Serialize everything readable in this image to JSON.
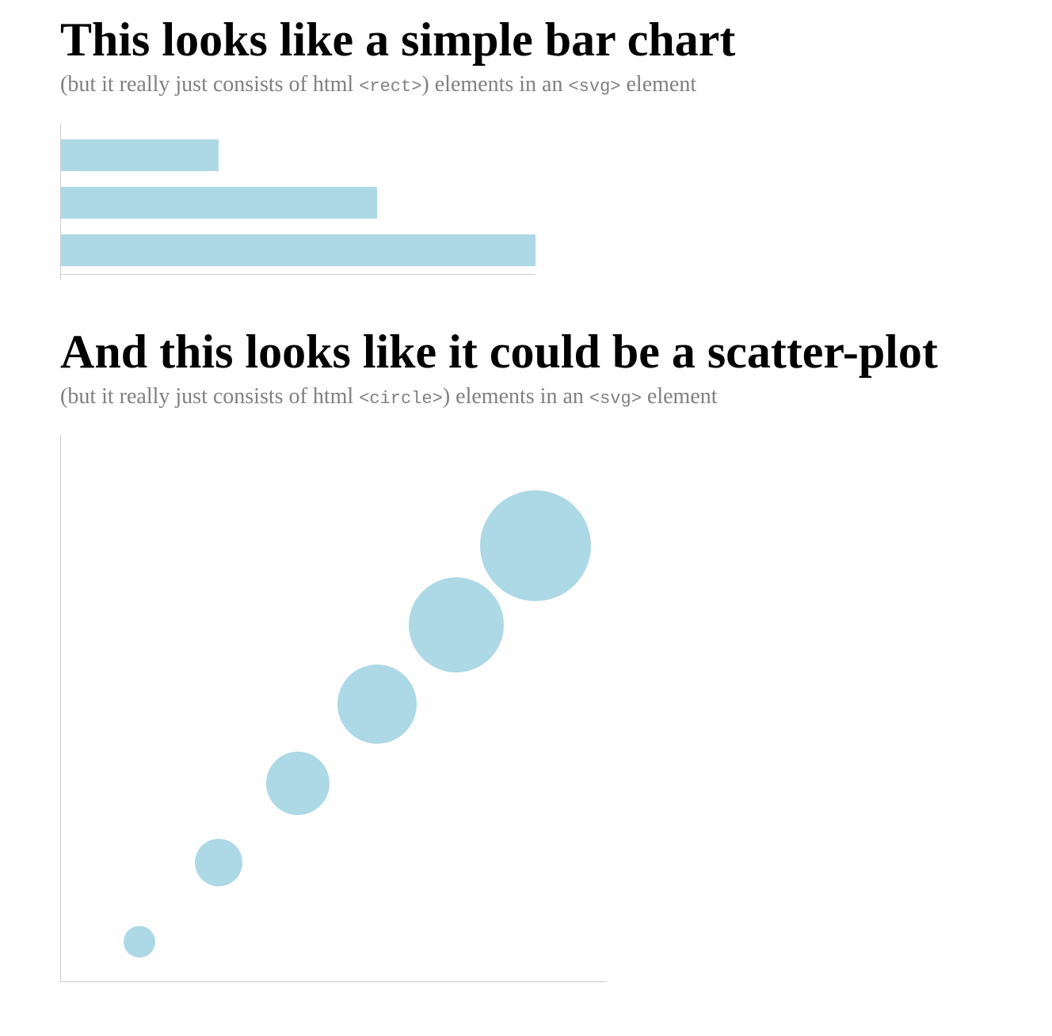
{
  "colors": {
    "mark": "#add8e6",
    "axis": "#cccccc",
    "title": "#000000",
    "subtitle": "#808080"
  },
  "section1": {
    "title": "This looks like a simple bar chart",
    "subtitle_pre": "(but it really just consists of html ",
    "subtitle_code1": "<rect>",
    "subtitle_mid": ") elements in an ",
    "subtitle_code2": "<svg>",
    "subtitle_post": " element"
  },
  "section2": {
    "title": "And this looks like it could be a scatter-plot",
    "subtitle_pre": "(but it really just consists of html ",
    "subtitle_code1": "<circle>",
    "subtitle_mid": ") elements in an ",
    "subtitle_code2": "<svg>",
    "subtitle_post": " element"
  },
  "chart_data": [
    {
      "type": "bar",
      "orientation": "horizontal",
      "values": [
        1,
        2,
        3
      ],
      "xlim": [
        0,
        3
      ],
      "grid": false,
      "axis_ticks": false
    },
    {
      "type": "scatter",
      "x": [
        1,
        2,
        3,
        4,
        5,
        6
      ],
      "y": [
        1,
        2,
        3,
        4,
        5,
        6
      ],
      "size": [
        1,
        1.5,
        2,
        2.5,
        3,
        3.5
      ],
      "xlim": [
        0,
        6.9
      ],
      "ylim": [
        0.5,
        7.4
      ],
      "grid": false,
      "axis_ticks": false
    }
  ]
}
